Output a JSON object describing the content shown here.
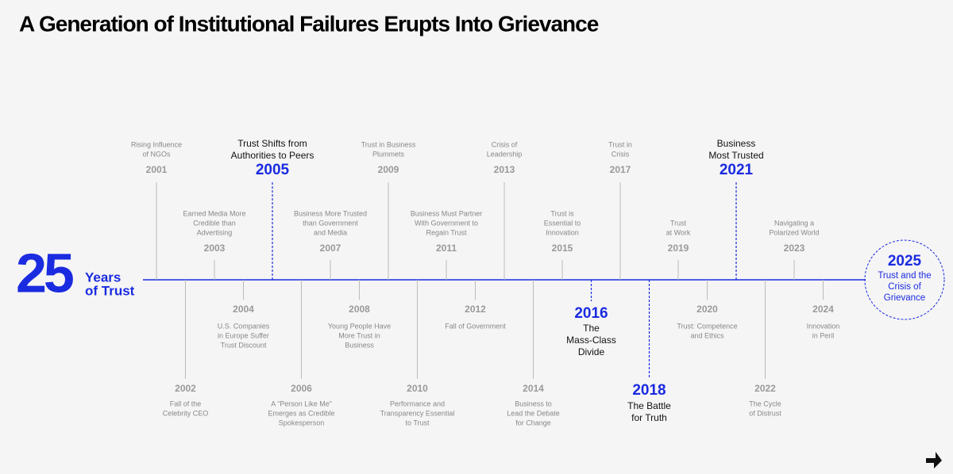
{
  "title": "A Generation of Institutional Failures Erupts Into Grievance",
  "badge": {
    "number": "25",
    "lines": [
      "Years",
      "of Trust"
    ]
  },
  "events": [
    {
      "year": "2001",
      "lines": [
        "Rising Influence",
        "of NGOs"
      ]
    },
    {
      "year": "2002",
      "lines": [
        "Fall of the",
        "Celebrity CEO"
      ]
    },
    {
      "year": "2003",
      "lines": [
        "Earned Media More",
        "Credible than",
        "Advertising"
      ]
    },
    {
      "year": "2004",
      "lines": [
        "U.S. Companies",
        "in Europe Suffer",
        "Trust Discount"
      ]
    },
    {
      "year": "2005",
      "lines": [
        "Trust Shifts from",
        "Authorities to Peers"
      ],
      "highlight": true
    },
    {
      "year": "2006",
      "lines": [
        "A “Person Like Me”",
        "Emerges as Credible",
        "Spokesperson"
      ]
    },
    {
      "year": "2007",
      "lines": [
        "Business More Trusted",
        "than Government",
        "and Media"
      ]
    },
    {
      "year": "2008",
      "lines": [
        "Young People Have",
        "More Trust in",
        "Business"
      ]
    },
    {
      "year": "2009",
      "lines": [
        "Trust in Business",
        "Plummets"
      ]
    },
    {
      "year": "2010",
      "lines": [
        "Performance and",
        "Transparency Essential",
        "to Trust"
      ]
    },
    {
      "year": "2011",
      "lines": [
        "Business Must Partner",
        "With Government to",
        "Regain Trust"
      ]
    },
    {
      "year": "2012",
      "lines": [
        "Fall of Government"
      ]
    },
    {
      "year": "2013",
      "lines": [
        "Crisis of",
        "Leadership"
      ]
    },
    {
      "year": "2014",
      "lines": [
        "Business to",
        "Lead the Debate",
        "for Change"
      ]
    },
    {
      "year": "2015",
      "lines": [
        "Trust is",
        "Essential to",
        "Innovation"
      ]
    },
    {
      "year": "2016",
      "lines": [
        "The",
        "Mass-Class",
        "Divide"
      ],
      "highlight": true
    },
    {
      "year": "2017",
      "lines": [
        "Trust in",
        "Crisis"
      ]
    },
    {
      "year": "2018",
      "lines": [
        "The Battle",
        "for Truth"
      ],
      "highlight": true
    },
    {
      "year": "2019",
      "lines": [
        "Trust",
        "at Work"
      ]
    },
    {
      "year": "2020",
      "lines": [
        "Trust: Competence",
        "and Ethics"
      ]
    },
    {
      "year": "2021",
      "lines": [
        "Business",
        "Most Trusted"
      ],
      "highlight": true
    },
    {
      "year": "2022",
      "lines": [
        "The Cycle",
        "of Distrust"
      ]
    },
    {
      "year": "2023",
      "lines": [
        "Navigating a",
        "Polarized World"
      ]
    },
    {
      "year": "2024",
      "lines": [
        "Innovation",
        "in Peril"
      ]
    }
  ],
  "final": {
    "year": "2025",
    "lines": [
      "Trust and the",
      "Crisis of",
      "Grievance"
    ]
  }
}
